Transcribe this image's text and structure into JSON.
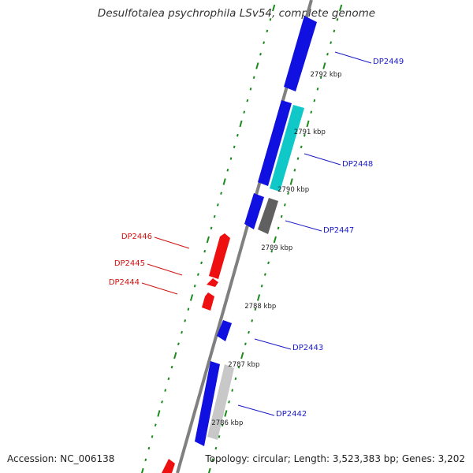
{
  "title": "Desulfotalea psychrophila LSv54, complete genome",
  "footer": {
    "accession": "Accession: NC_006138",
    "summary": "Topology: circular; Length: 3,523,383 bp; Genes: 3,202"
  },
  "colors": {
    "forward_gene": "#1010e0",
    "reverse_gene": "#ee1010",
    "cyan_gene": "#10c8c8",
    "dark_gray_gene": "#606060",
    "light_gray_gene": "#c8c8c8",
    "backbone": "#808080",
    "tick": "#1a8a1a",
    "forward_label": "#1a1ac8",
    "reverse_label": "#d01010"
  },
  "scale_labels": [
    "2792 kbp",
    "2791 kbp",
    "2790 kbp",
    "2789 kbp",
    "2788 kbp",
    "2787 kbp",
    "2786 kbp"
  ],
  "genes": [
    {
      "label": "DP2449",
      "strand": "forward"
    },
    {
      "label": "DP2448",
      "strand": "forward"
    },
    {
      "label": "DP2447",
      "strand": "forward"
    },
    {
      "label": "DP2446",
      "strand": "reverse"
    },
    {
      "label": "DP2445",
      "strand": "reverse"
    },
    {
      "label": "DP2444",
      "strand": "reverse"
    },
    {
      "label": "DP2443",
      "strand": "forward"
    },
    {
      "label": "DP2442",
      "strand": "forward"
    }
  ]
}
